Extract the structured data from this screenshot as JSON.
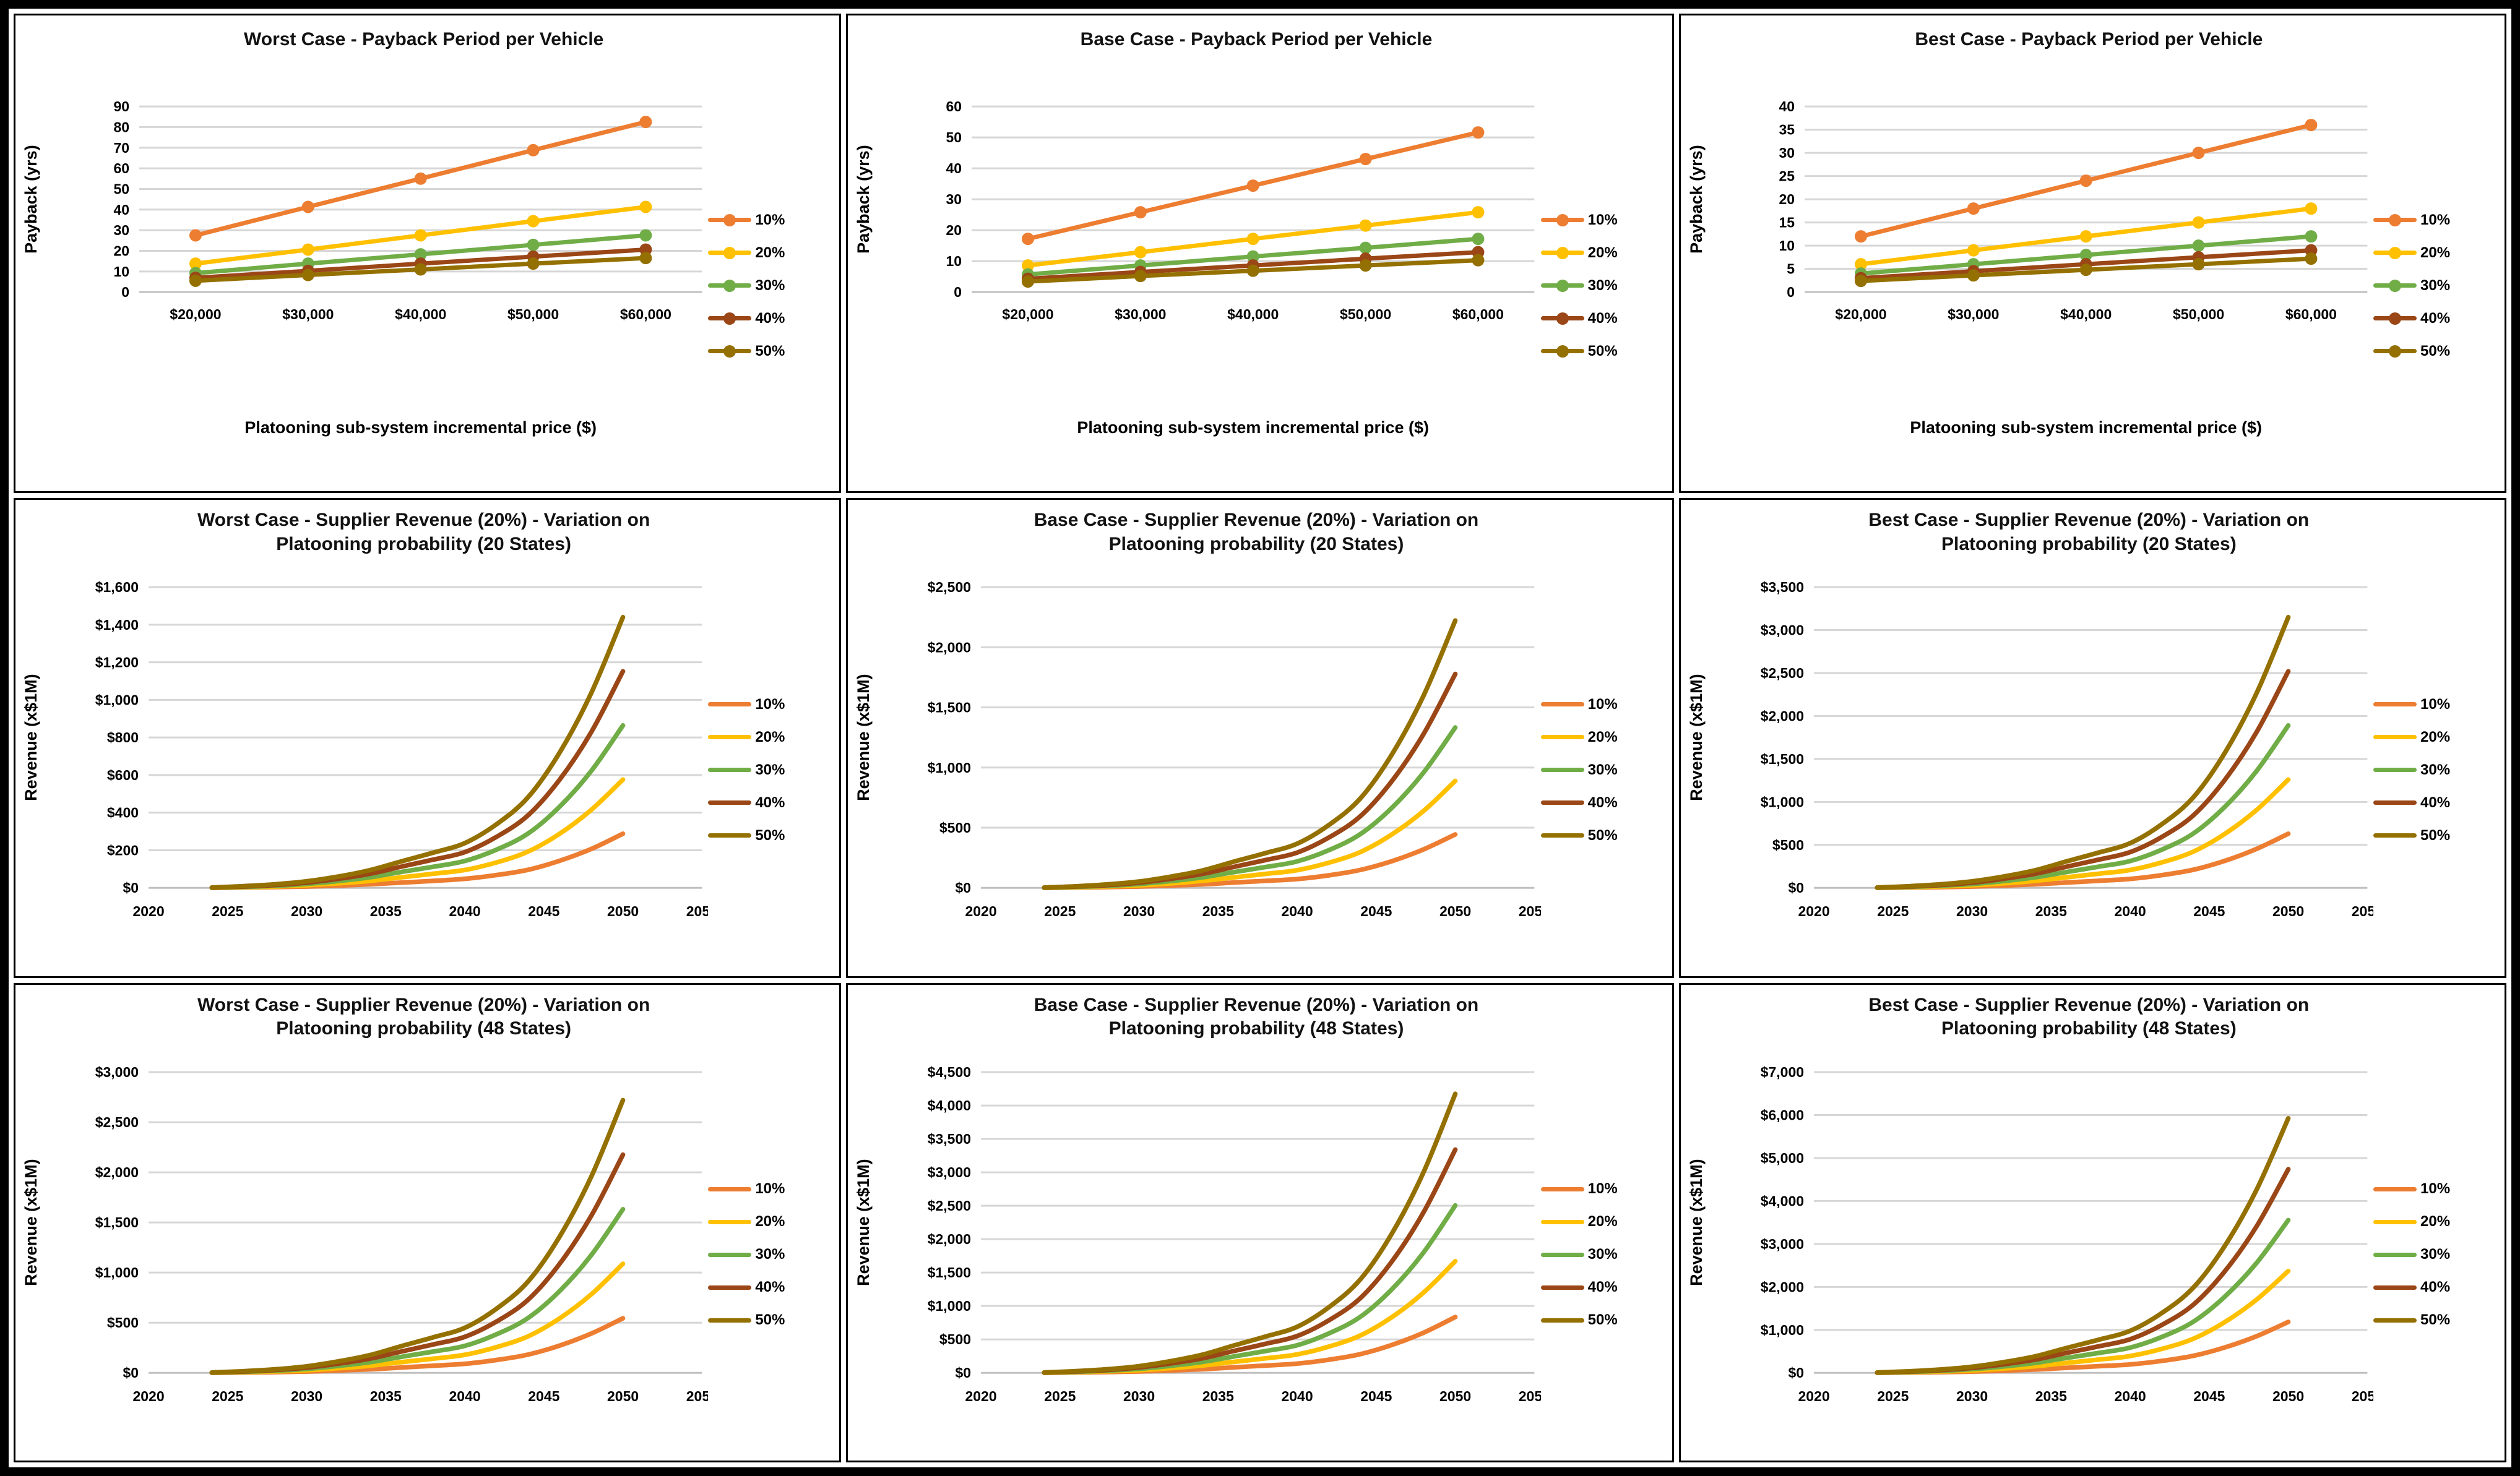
{
  "palette": {
    "s10": "#ED7D31",
    "s20": "#FFC000",
    "s30": "#70AD47",
    "s40": "#9B4616",
    "s50": "#947000"
  },
  "colors": {
    "gridline": "#D6D6D6",
    "baseline": "#C0C0C0",
    "text": "#000000",
    "panel_border": "#000000",
    "background": "#FFFFFF"
  },
  "legend_labels": [
    "10%",
    "20%",
    "30%",
    "40%",
    "50%"
  ],
  "chart_data": [
    {
      "id": "worst-case-payback",
      "type": "line",
      "kind": "line-markers",
      "title": "Worst Case - Payback Period per Vehicle",
      "xlabel": "Platooning sub-system incremental price ($)",
      "ylabel": "Payback (yrs)",
      "ylim": [
        0,
        90
      ],
      "ystep": 10,
      "yformat": "plain",
      "categories": [
        "$20,000",
        "$30,000",
        "$40,000",
        "$50,000",
        "$60,000"
      ],
      "grid": true,
      "legend_position": "right",
      "series": [
        {
          "name": "10%",
          "color_key": "s10",
          "values": [
            27.5,
            41.3,
            55.0,
            68.8,
            82.5
          ]
        },
        {
          "name": "20%",
          "color_key": "s20",
          "values": [
            13.8,
            20.6,
            27.5,
            34.4,
            41.3
          ]
        },
        {
          "name": "30%",
          "color_key": "s30",
          "values": [
            9.2,
            13.8,
            18.3,
            22.9,
            27.5
          ]
        },
        {
          "name": "40%",
          "color_key": "s40",
          "values": [
            6.9,
            10.3,
            13.8,
            17.2,
            20.6
          ]
        },
        {
          "name": "50%",
          "color_key": "s50",
          "values": [
            5.5,
            8.3,
            11.0,
            13.8,
            16.5
          ]
        }
      ]
    },
    {
      "id": "base-case-payback",
      "type": "line",
      "kind": "line-markers",
      "title": "Base Case - Payback Period per Vehicle",
      "xlabel": "Platooning sub-system incremental price ($)",
      "ylabel": "Payback (yrs)",
      "ylim": [
        0,
        60
      ],
      "ystep": 10,
      "yformat": "plain",
      "categories": [
        "$20,000",
        "$30,000",
        "$40,000",
        "$50,000",
        "$60,000"
      ],
      "grid": true,
      "legend_position": "right",
      "series": [
        {
          "name": "10%",
          "color_key": "s10",
          "values": [
            17.2,
            25.8,
            34.4,
            43.0,
            51.6
          ]
        },
        {
          "name": "20%",
          "color_key": "s20",
          "values": [
            8.6,
            12.9,
            17.2,
            21.5,
            25.8
          ]
        },
        {
          "name": "30%",
          "color_key": "s30",
          "values": [
            5.7,
            8.6,
            11.5,
            14.3,
            17.2
          ]
        },
        {
          "name": "40%",
          "color_key": "s40",
          "values": [
            4.3,
            6.5,
            8.6,
            10.8,
            12.9
          ]
        },
        {
          "name": "50%",
          "color_key": "s50",
          "values": [
            3.4,
            5.2,
            6.9,
            8.6,
            10.3
          ]
        }
      ]
    },
    {
      "id": "best-case-payback",
      "type": "line",
      "kind": "line-markers",
      "title": "Best Case - Payback Period per Vehicle",
      "xlabel": "Platooning sub-system incremental price ($)",
      "ylabel": "Payback (yrs)",
      "ylim": [
        0,
        40
      ],
      "ystep": 5,
      "yformat": "plain",
      "categories": [
        "$20,000",
        "$30,000",
        "$40,000",
        "$50,000",
        "$60,000"
      ],
      "grid": true,
      "legend_position": "right",
      "series": [
        {
          "name": "10%",
          "color_key": "s10",
          "values": [
            12.0,
            18.0,
            24.0,
            30.0,
            36.0
          ]
        },
        {
          "name": "20%",
          "color_key": "s20",
          "values": [
            6.0,
            9.0,
            12.0,
            15.0,
            18.0
          ]
        },
        {
          "name": "30%",
          "color_key": "s30",
          "values": [
            4.0,
            6.0,
            8.0,
            10.0,
            12.0
          ]
        },
        {
          "name": "40%",
          "color_key": "s40",
          "values": [
            3.0,
            4.5,
            6.0,
            7.5,
            9.0
          ]
        },
        {
          "name": "50%",
          "color_key": "s50",
          "values": [
            2.4,
            3.6,
            4.8,
            6.0,
            7.2
          ]
        }
      ]
    },
    {
      "id": "worst-case-revenue-20-states",
      "type": "line",
      "kind": "smooth",
      "title": "Worst Case - Supplier Revenue (20%) - Variation on Platooning probability (20 States)",
      "xlabel": "",
      "ylabel": "Revenue (x$1M)",
      "ylim": [
        0,
        1600
      ],
      "ystep": 200,
      "yformat": "money",
      "xlim": [
        2020,
        2055
      ],
      "xstep": 5,
      "grid": true,
      "legend_position": "right",
      "years": [
        2024,
        2026,
        2028,
        2030,
        2032,
        2034,
        2036,
        2038,
        2040,
        2042,
        2044,
        2046,
        2048,
        2050
      ],
      "series": [
        {
          "name": "10%",
          "color_key": "s10",
          "values": [
            0,
            2,
            4,
            7,
            12,
            19,
            28,
            37,
            48,
            68,
            96,
            144,
            207,
            288
          ]
        },
        {
          "name": "20%",
          "color_key": "s20",
          "values": [
            1,
            3,
            7,
            14,
            24,
            37,
            56,
            75,
            95,
            135,
            193,
            288,
            415,
            576
          ]
        },
        {
          "name": "30%",
          "color_key": "s30",
          "values": [
            1,
            5,
            11,
            21,
            36,
            56,
            85,
            112,
            143,
            203,
            289,
            432,
            622,
            864
          ]
        },
        {
          "name": "40%",
          "color_key": "s40",
          "values": [
            1,
            7,
            15,
            28,
            48,
            75,
            113,
            150,
            190,
            271,
            386,
            576,
            829,
            1152
          ]
        },
        {
          "name": "50%",
          "color_key": "s50",
          "values": [
            1,
            9,
            19,
            35,
            60,
            94,
            141,
            187,
            238,
            338,
            482,
            720,
            1037,
            1440
          ]
        }
      ]
    },
    {
      "id": "base-case-revenue-20-states",
      "type": "line",
      "kind": "smooth",
      "title": "Base Case - Supplier Revenue (20%) - Variation on Platooning probability (20 States)",
      "xlabel": "",
      "ylabel": "Revenue (x$1M)",
      "ylim": [
        0,
        2500
      ],
      "ystep": 500,
      "yformat": "money",
      "xlim": [
        2020,
        2055
      ],
      "xstep": 5,
      "grid": true,
      "legend_position": "right",
      "years": [
        2024,
        2026,
        2028,
        2030,
        2032,
        2034,
        2036,
        2038,
        2040,
        2042,
        2044,
        2046,
        2048,
        2050
      ],
      "series": [
        {
          "name": "10%",
          "color_key": "s10",
          "values": [
            0,
            3,
            6,
            11,
            19,
            29,
            44,
            58,
            73,
            104,
            149,
            222,
            320,
            444
          ]
        },
        {
          "name": "20%",
          "color_key": "s20",
          "values": [
            1,
            5,
            12,
            21,
            37,
            58,
            87,
            116,
            147,
            209,
            298,
            445,
            640,
            889
          ]
        },
        {
          "name": "30%",
          "color_key": "s30",
          "values": [
            1,
            8,
            17,
            32,
            56,
            87,
            131,
            173,
            220,
            313,
            447,
            667,
            960,
            1333
          ]
        },
        {
          "name": "40%",
          "color_key": "s40",
          "values": [
            2,
            11,
            23,
            43,
            75,
            116,
            174,
            231,
            293,
            418,
            596,
            889,
            1280,
            1778
          ]
        },
        {
          "name": "50%",
          "color_key": "s50",
          "values": [
            2,
            13,
            29,
            53,
            93,
            144,
            218,
            289,
            367,
            522,
            744,
            1111,
            1600,
            2222
          ]
        }
      ]
    },
    {
      "id": "best-case-revenue-20-states",
      "type": "line",
      "kind": "smooth",
      "title": "Best Case - Supplier Revenue (20%) - Variation on Platooning probability (20 States)",
      "xlabel": "",
      "ylabel": "Revenue (x$1M)",
      "ylim": [
        0,
        3500
      ],
      "ystep": 500,
      "yformat": "money",
      "xlim": [
        2020,
        2055
      ],
      "xstep": 5,
      "grid": true,
      "legend_position": "right",
      "years": [
        2024,
        2026,
        2028,
        2030,
        2032,
        2034,
        2036,
        2038,
        2040,
        2042,
        2044,
        2046,
        2048,
        2050
      ],
      "series": [
        {
          "name": "10%",
          "color_key": "s10",
          "values": [
            1,
            4,
            8,
            15,
            26,
            41,
            62,
            82,
            104,
            148,
            211,
            315,
            454,
            630
          ]
        },
        {
          "name": "20%",
          "color_key": "s20",
          "values": [
            1,
            8,
            16,
            30,
            53,
            82,
            123,
            164,
            208,
            296,
            422,
            630,
            907,
            1260
          ]
        },
        {
          "name": "30%",
          "color_key": "s30",
          "values": [
            2,
            11,
            25,
            45,
            79,
            123,
            185,
            246,
            312,
            444,
            633,
            945,
            1361,
            1890
          ]
        },
        {
          "name": "40%",
          "color_key": "s40",
          "values": [
            3,
            15,
            33,
            60,
            106,
            164,
            247,
            328,
            416,
            592,
            844,
            1260,
            1814,
            2520
          ]
        },
        {
          "name": "50%",
          "color_key": "s50",
          "values": [
            3,
            19,
            41,
            76,
            132,
            205,
            309,
            410,
            520,
            740,
            1055,
            1575,
            2268,
            3150
          ]
        }
      ]
    },
    {
      "id": "worst-case-revenue-48-states",
      "type": "line",
      "kind": "smooth",
      "title": "Worst Case - Supplier Revenue (20%) - Variation on Platooning probability (48 States)",
      "xlabel": "",
      "ylabel": "Revenue (x$1M)",
      "ylim": [
        0,
        3000
      ],
      "ystep": 500,
      "yformat": "money",
      "xlim": [
        2020,
        2055
      ],
      "xstep": 5,
      "grid": true,
      "legend_position": "right",
      "years": [
        2024,
        2026,
        2028,
        2030,
        2032,
        2034,
        2036,
        2038,
        2040,
        2042,
        2044,
        2046,
        2048,
        2050
      ],
      "series": [
        {
          "name": "10%",
          "color_key": "s10",
          "values": [
            1,
            3,
            7,
            13,
            23,
            35,
            53,
            71,
            90,
            128,
            182,
            272,
            392,
            544
          ]
        },
        {
          "name": "20%",
          "color_key": "s20",
          "values": [
            1,
            7,
            14,
            26,
            46,
            71,
            107,
            141,
            180,
            256,
            364,
            544,
            783,
            1088
          ]
        },
        {
          "name": "30%",
          "color_key": "s30",
          "values": [
            2,
            10,
            21,
            39,
            69,
            106,
            160,
            212,
            269,
            384,
            547,
            816,
            1175,
            1632
          ]
        },
        {
          "name": "40%",
          "color_key": "s40",
          "values": [
            2,
            13,
            28,
            52,
            91,
            141,
            213,
            283,
            359,
            511,
            729,
            1088,
            1567,
            2176
          ]
        },
        {
          "name": "50%",
          "color_key": "s50",
          "values": [
            3,
            16,
            35,
            65,
            114,
            177,
            267,
            354,
            449,
            639,
            911,
            1360,
            1958,
            2720
          ]
        }
      ]
    },
    {
      "id": "base-case-revenue-48-states",
      "type": "line",
      "kind": "smooth",
      "title": "Base Case - Supplier Revenue (20%) - Variation on Platooning probability (48 States)",
      "xlabel": "",
      "ylabel": "Revenue (x$1M)",
      "ylim": [
        0,
        4500
      ],
      "ystep": 500,
      "yformat": "money",
      "xlim": [
        2020,
        2055
      ],
      "xstep": 5,
      "grid": true,
      "legend_position": "right",
      "years": [
        2024,
        2026,
        2028,
        2030,
        2032,
        2034,
        2036,
        2038,
        2040,
        2042,
        2044,
        2046,
        2048,
        2050
      ],
      "series": [
        {
          "name": "10%",
          "color_key": "s10",
          "values": [
            1,
            5,
            11,
            20,
            35,
            54,
            82,
            109,
            138,
            196,
            280,
            418,
            601,
            835
          ]
        },
        {
          "name": "20%",
          "color_key": "s20",
          "values": [
            2,
            10,
            22,
            40,
            70,
            109,
            164,
            217,
            276,
            392,
            559,
            835,
            1202,
            1670
          ]
        },
        {
          "name": "30%",
          "color_key": "s30",
          "values": [
            3,
            15,
            33,
            60,
            105,
            163,
            245,
            326,
            413,
            589,
            839,
            1253,
            1804,
            2505
          ]
        },
        {
          "name": "40%",
          "color_key": "s40",
          "values": [
            3,
            20,
            43,
            80,
            140,
            217,
            327,
            434,
            551,
            785,
            1119,
            1670,
            2405,
            3340
          ]
        },
        {
          "name": "50%",
          "color_key": "s50",
          "values": [
            4,
            25,
            54,
            100,
            175,
            271,
            409,
            543,
            689,
            981,
            1399,
            2088,
            3006,
            4175
          ]
        }
      ]
    },
    {
      "id": "best-case-revenue-48-states",
      "type": "line",
      "kind": "smooth",
      "title": "Best Case - Supplier Revenue (20%) - Variation on Platooning probability (48 States)",
      "xlabel": "",
      "ylabel": "Revenue (x$1M)",
      "ylim": [
        0,
        7000
      ],
      "ystep": 1000,
      "yformat": "money",
      "xlim": [
        2020,
        2055
      ],
      "xstep": 5,
      "grid": true,
      "legend_position": "right",
      "years": [
        2024,
        2026,
        2028,
        2030,
        2032,
        2034,
        2036,
        2038,
        2040,
        2042,
        2044,
        2046,
        2048,
        2050
      ],
      "series": [
        {
          "name": "10%",
          "color_key": "s10",
          "values": [
            1,
            7,
            15,
            28,
            50,
            77,
            116,
            154,
            196,
            278,
            397,
            593,
            853,
            1185
          ]
        },
        {
          "name": "20%",
          "color_key": "s20",
          "values": [
            2,
            14,
            31,
            57,
            100,
            154,
            232,
            308,
            391,
            557,
            794,
            1185,
            1706,
            2370
          ]
        },
        {
          "name": "30%",
          "color_key": "s30",
          "values": [
            4,
            21,
            46,
            85,
            149,
            231,
            348,
            462,
            587,
            835,
            1191,
            1778,
            2560,
            3555
          ]
        },
        {
          "name": "40%",
          "color_key": "s40",
          "values": [
            5,
            28,
            62,
            114,
            199,
            308,
            465,
            616,
            782,
            1114,
            1588,
            2370,
            3413,
            4740
          ]
        },
        {
          "name": "50%",
          "color_key": "s50",
          "values": [
            6,
            36,
            77,
            142,
            249,
            385,
            581,
            770,
            978,
            1392,
            1985,
            2963,
            4266,
            5925
          ]
        }
      ]
    }
  ]
}
